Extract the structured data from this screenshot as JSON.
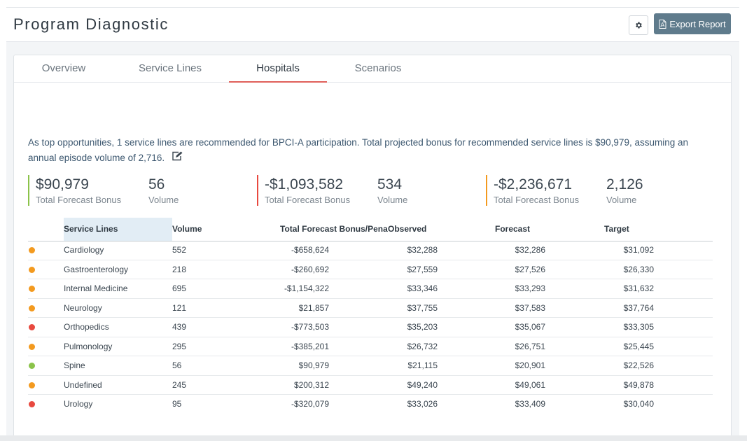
{
  "header": {
    "title": "Program Diagnostic",
    "settings_icon": "gear-icon",
    "export_label": "Export Report",
    "export_icon": "pdf-file-icon"
  },
  "tabs": [
    {
      "label": "Overview",
      "active": false
    },
    {
      "label": "Service Lines",
      "active": false
    },
    {
      "label": "Hospitals",
      "active": true
    },
    {
      "label": "Scenarios",
      "active": false
    }
  ],
  "summary": {
    "text": "As top opportunities, 1 service lines are recommended for BPCI-A participation. Total projected bonus for recommended service lines is $90,979, assuming an annual episode volume of 2,716.",
    "edit_icon": "edit-icon"
  },
  "stats": [
    {
      "amount": "$90,979",
      "amount_label": "Total Forecast Bonus",
      "volume": "56",
      "volume_label": "Volume",
      "color": "#8bc34a"
    },
    {
      "amount": "-$1,093,582",
      "amount_label": "Total Forecast Bonus",
      "volume": "534",
      "volume_label": "Volume",
      "color": "#e8493f"
    },
    {
      "amount": "-$2,236,671",
      "amount_label": "Total Forecast Bonus",
      "volume": "2,126",
      "volume_label": "Volume",
      "color": "#f39a1f"
    }
  ],
  "table": {
    "columns": [
      "Service Lines",
      "Volume",
      "Total Forecast Bonus/Pena",
      "Observed",
      "Forecast",
      "Target"
    ],
    "status_colors": {
      "green": "#8bc34a",
      "orange": "#f39a1f",
      "red": "#e8493f"
    },
    "rows": [
      {
        "status": "orange",
        "name": "Cardiology",
        "volume": "552",
        "bonus": "-$658,624",
        "observed": "$32,288",
        "forecast": "$32,286",
        "target": "$31,092"
      },
      {
        "status": "orange",
        "name": "Gastroenterology",
        "volume": "218",
        "bonus": "-$260,692",
        "observed": "$27,559",
        "forecast": "$27,526",
        "target": "$26,330"
      },
      {
        "status": "orange",
        "name": "Internal Medicine",
        "volume": "695",
        "bonus": "-$1,154,322",
        "observed": "$33,346",
        "forecast": "$33,293",
        "target": "$31,632"
      },
      {
        "status": "orange",
        "name": "Neurology",
        "volume": "121",
        "bonus": "$21,857",
        "observed": "$37,755",
        "forecast": "$37,583",
        "target": "$37,764"
      },
      {
        "status": "red",
        "name": "Orthopedics",
        "volume": "439",
        "bonus": "-$773,503",
        "observed": "$35,203",
        "forecast": "$35,067",
        "target": "$33,305"
      },
      {
        "status": "orange",
        "name": "Pulmonology",
        "volume": "295",
        "bonus": "-$385,201",
        "observed": "$26,732",
        "forecast": "$26,751",
        "target": "$25,445"
      },
      {
        "status": "green",
        "name": "Spine",
        "volume": "56",
        "bonus": "$90,979",
        "observed": "$21,115",
        "forecast": "$20,901",
        "target": "$22,526"
      },
      {
        "status": "orange",
        "name": "Undefined",
        "volume": "245",
        "bonus": "$200,312",
        "observed": "$49,240",
        "forecast": "$49,061",
        "target": "$49,878"
      },
      {
        "status": "red",
        "name": "Urology",
        "volume": "95",
        "bonus": "-$320,079",
        "observed": "$33,026",
        "forecast": "$33,409",
        "target": "$30,040"
      }
    ]
  }
}
